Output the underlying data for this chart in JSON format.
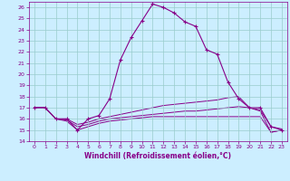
{
  "xlabel": "Windchill (Refroidissement éolien,°C)",
  "xlim": [
    -0.5,
    23.5
  ],
  "ylim": [
    14,
    26.5
  ],
  "yticks": [
    14,
    15,
    16,
    17,
    18,
    19,
    20,
    21,
    22,
    23,
    24,
    25,
    26
  ],
  "xticks": [
    0,
    1,
    2,
    3,
    4,
    5,
    6,
    7,
    8,
    9,
    10,
    11,
    12,
    13,
    14,
    15,
    16,
    17,
    18,
    19,
    20,
    21,
    22,
    23
  ],
  "bg_color": "#cceeff",
  "line_color": "#880088",
  "grid_color": "#99cccc",
  "series": [
    {
      "x": [
        0,
        1,
        2,
        3,
        4,
        5,
        6,
        7,
        8,
        9,
        10,
        11,
        12,
        13,
        14,
        15,
        16,
        17,
        18,
        19,
        20,
        21,
        22,
        23
      ],
      "y": [
        17,
        17,
        16,
        16,
        15,
        16,
        16.3,
        17.8,
        21.3,
        23.3,
        24.8,
        26.3,
        26,
        25.5,
        24.7,
        24.3,
        22.2,
        21.8,
        19.3,
        17.8,
        17,
        17,
        15.3,
        15
      ],
      "marker": true
    },
    {
      "x": [
        0,
        1,
        2,
        3,
        4,
        5,
        6,
        7,
        8,
        9,
        10,
        11,
        12,
        13,
        14,
        15,
        16,
        17,
        18,
        19,
        20,
        21,
        22,
        23
      ],
      "y": [
        17,
        17,
        16,
        16,
        15.5,
        15.7,
        16,
        16.2,
        16.4,
        16.6,
        16.8,
        17.0,
        17.2,
        17.3,
        17.4,
        17.5,
        17.6,
        17.7,
        17.9,
        18.0,
        17.0,
        16.8,
        15.3,
        15.1
      ],
      "marker": false
    },
    {
      "x": [
        0,
        1,
        2,
        3,
        4,
        5,
        6,
        7,
        8,
        9,
        10,
        11,
        12,
        13,
        14,
        15,
        16,
        17,
        18,
        19,
        20,
        21,
        22,
        23
      ],
      "y": [
        17,
        17,
        16,
        15.9,
        15.3,
        15.5,
        15.8,
        16.0,
        16.1,
        16.2,
        16.3,
        16.4,
        16.5,
        16.6,
        16.7,
        16.7,
        16.8,
        16.9,
        17.0,
        17.1,
        17.0,
        16.7,
        14.8,
        15.0
      ],
      "marker": false
    },
    {
      "x": [
        0,
        1,
        2,
        3,
        4,
        5,
        6,
        7,
        8,
        9,
        10,
        11,
        12,
        13,
        14,
        15,
        16,
        17,
        18,
        19,
        20,
        21,
        22,
        23
      ],
      "y": [
        17,
        17,
        16,
        15.8,
        15.0,
        15.3,
        15.6,
        15.8,
        15.9,
        16.0,
        16.1,
        16.2,
        16.2,
        16.2,
        16.2,
        16.2,
        16.2,
        16.2,
        16.2,
        16.2,
        16.2,
        16.2,
        14.8,
        15.0
      ],
      "marker": false
    }
  ]
}
